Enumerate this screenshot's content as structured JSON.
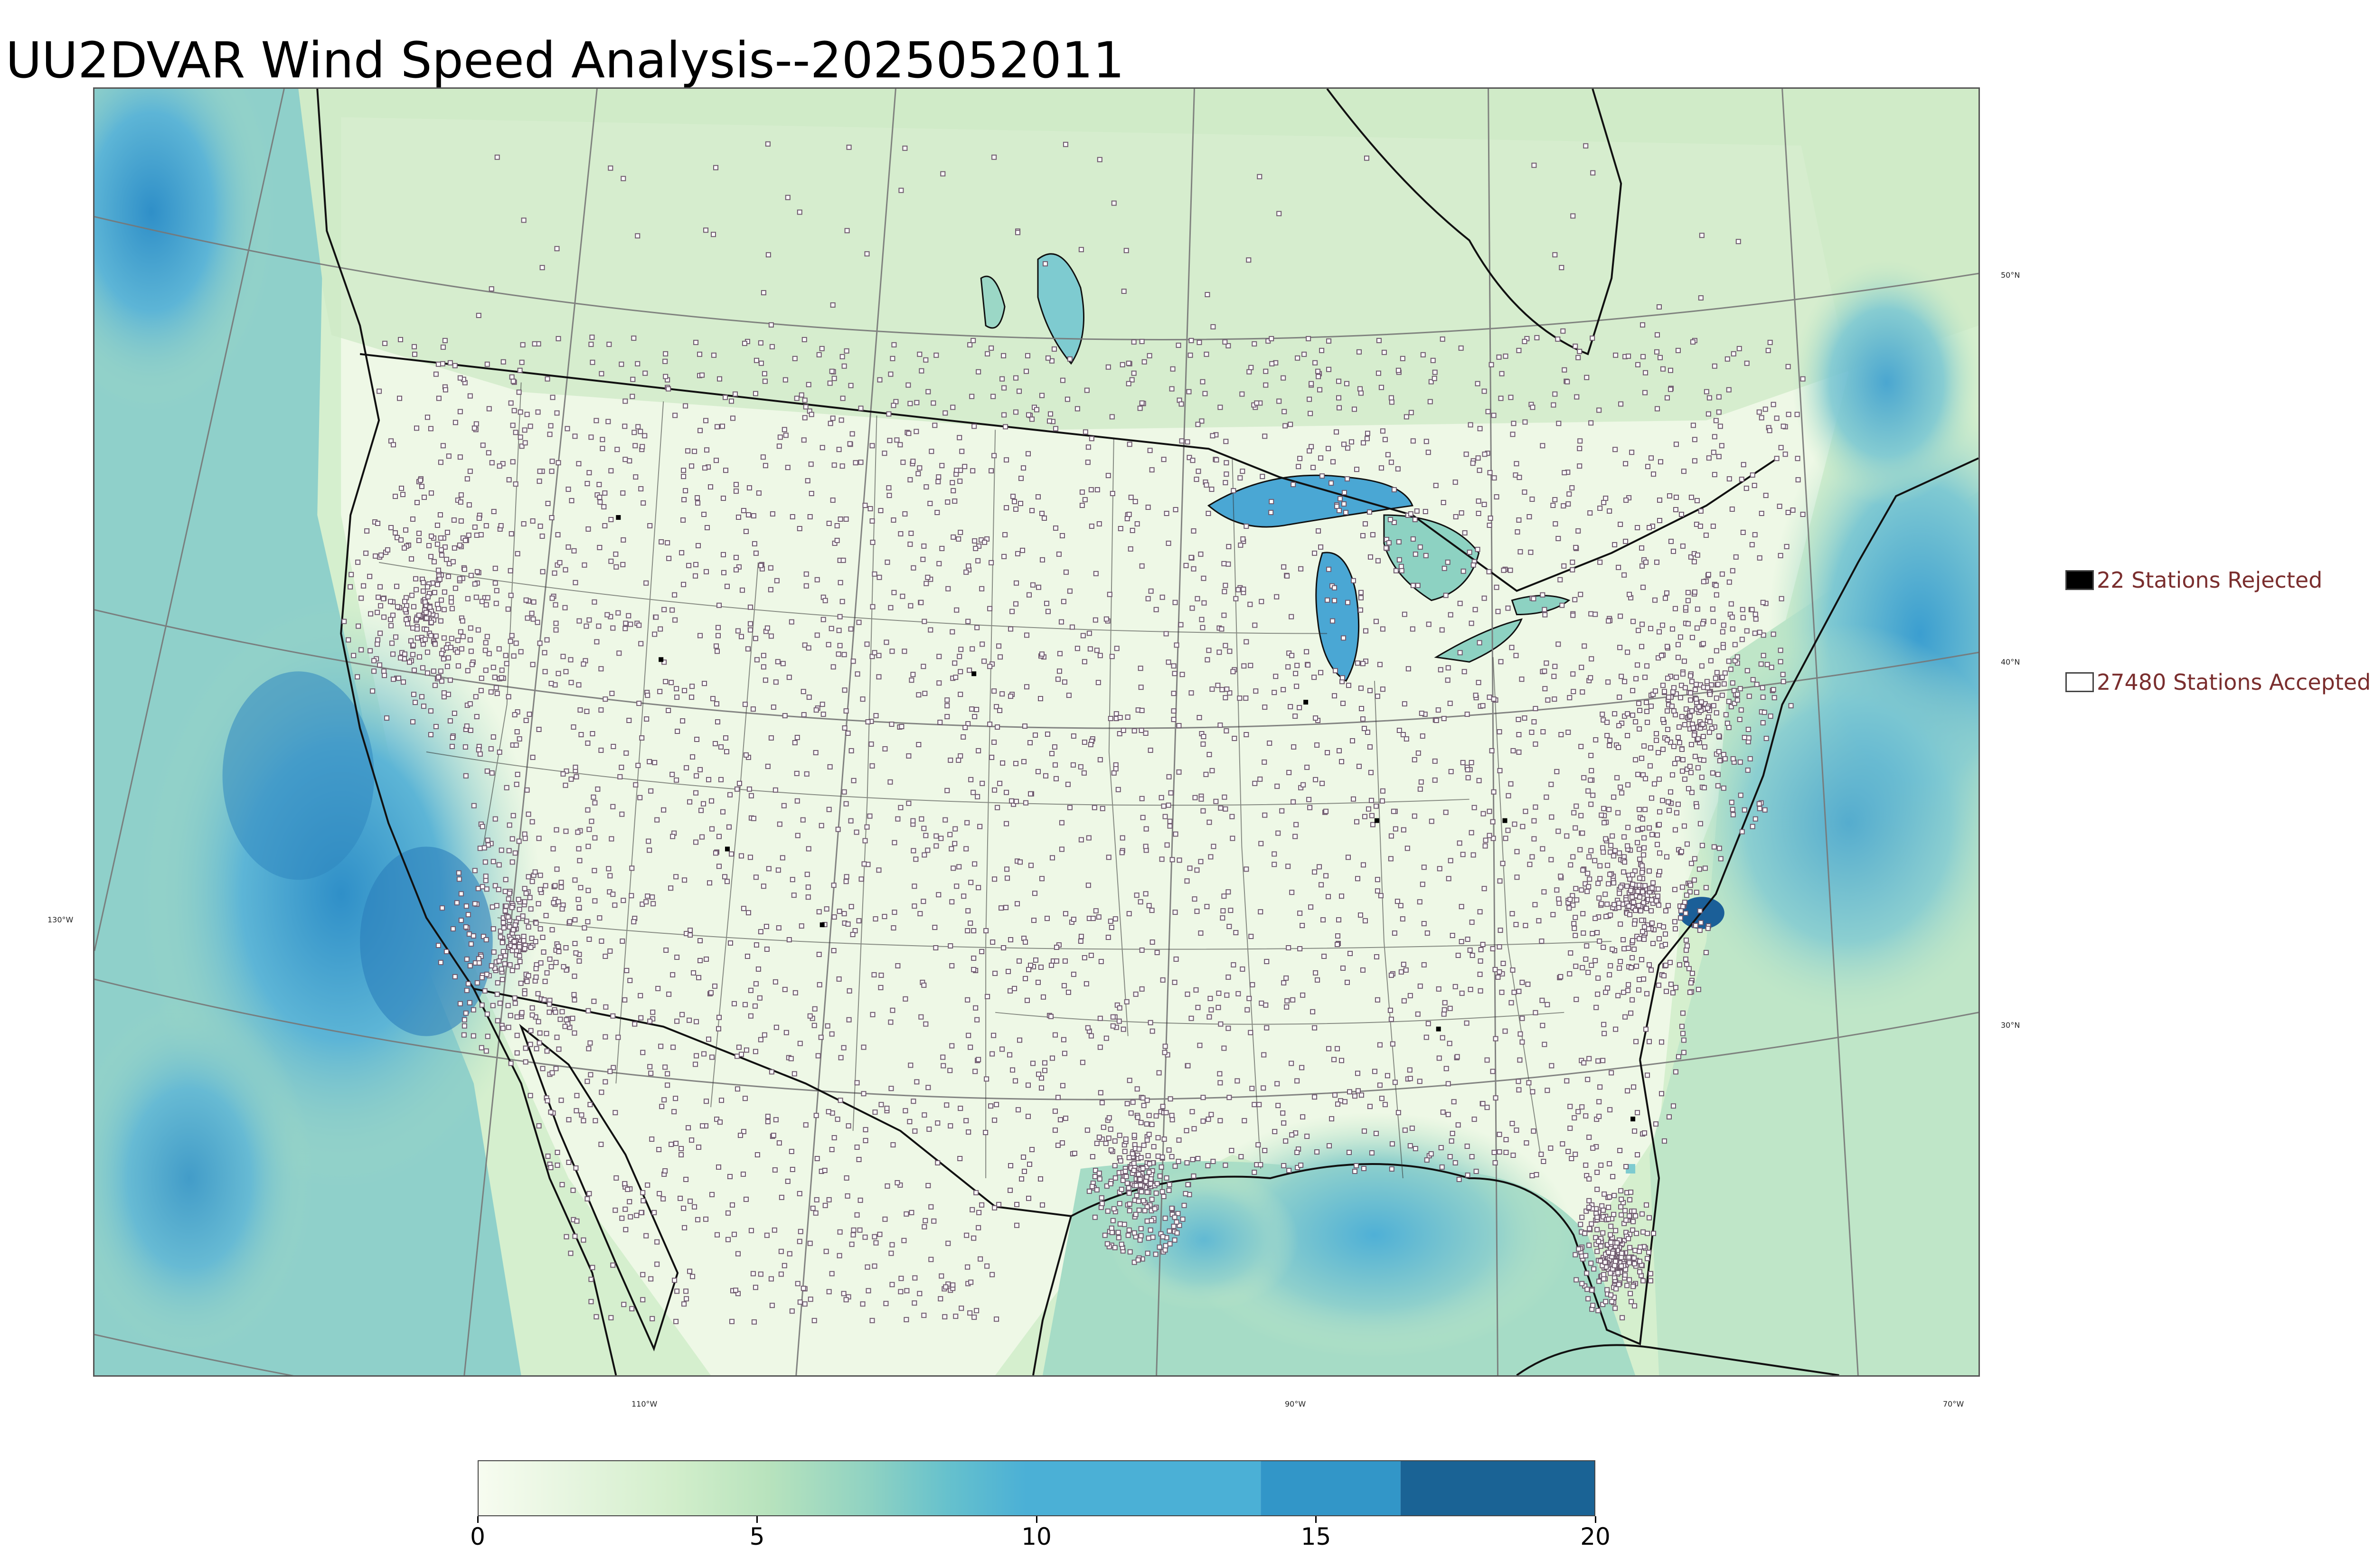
{
  "title": "UU2DVAR Wind Speed Analysis--2025052011",
  "legend": {
    "rejected": {
      "label": "22 Stations Rejected",
      "color": "#000000"
    },
    "accepted": {
      "label": "27480 Stations Accepted",
      "color": "#ffffff"
    }
  },
  "graticule": {
    "latitudes": [
      "50°N",
      "40°N",
      "30°N"
    ],
    "longitudes": [
      "130°W",
      "110°W",
      "90°W",
      "70°W"
    ]
  },
  "colorbar": {
    "min": 0,
    "max": 20,
    "ticks": [
      "0",
      "5",
      "10",
      "15",
      "20"
    ],
    "colors": [
      "#f7fcf0",
      "#e0f3db",
      "#ccebc5",
      "#a8ddb5",
      "#7bccc4",
      "#4eb3d3",
      "#2b8cbe",
      "#1a6395"
    ]
  },
  "colors": {
    "land": "#f4faee",
    "ocean_mid": "#7ecbd0",
    "ocean_high": "#3a9fd0",
    "ocean_peak": "#1d6aa6",
    "lakes": "#4aa7d4",
    "station_edge": "#6f5a6e"
  }
}
